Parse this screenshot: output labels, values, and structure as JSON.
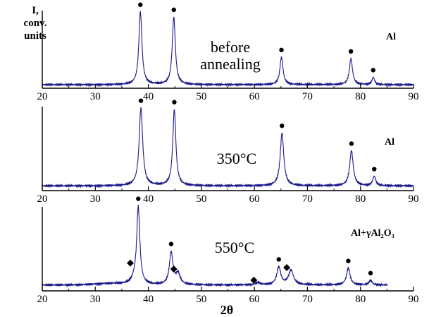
{
  "y_axis_label": [
    "I,",
    "conv.",
    "units"
  ],
  "x_axis_label": "2θ",
  "chart_data": [
    {
      "type": "line",
      "label": "before annealing",
      "phase": "Al",
      "xlim": [
        20,
        90
      ],
      "xticks": [
        20,
        30,
        40,
        50,
        60,
        70,
        80,
        90
      ],
      "baseline": 1.0,
      "peaks": [
        {
          "x": 38.5,
          "height": 100,
          "width": 0.35,
          "marker": "circle"
        },
        {
          "x": 44.8,
          "height": 93,
          "width": 0.35,
          "marker": "circle"
        },
        {
          "x": 65.1,
          "height": 38,
          "width": 0.35,
          "marker": "circle"
        },
        {
          "x": 78.2,
          "height": 36,
          "width": 0.35,
          "marker": "circle"
        },
        {
          "x": 82.4,
          "height": 10,
          "width": 0.3,
          "marker": "circle"
        }
      ]
    },
    {
      "type": "line",
      "label": "350°C",
      "phase": "Al",
      "xlim": [
        20,
        90
      ],
      "xticks": [
        20,
        30,
        40,
        50,
        60,
        70,
        80,
        90
      ],
      "baseline": 2.5,
      "peaks": [
        {
          "x": 38.6,
          "height": 100,
          "width": 0.4,
          "marker": "circle"
        },
        {
          "x": 44.9,
          "height": 98,
          "width": 0.35,
          "marker": "circle"
        },
        {
          "x": 65.2,
          "height": 68,
          "width": 0.4,
          "marker": "circle"
        },
        {
          "x": 78.3,
          "height": 45,
          "width": 0.4,
          "marker": "circle"
        },
        {
          "x": 82.6,
          "height": 12,
          "width": 0.35,
          "marker": "circle"
        }
      ]
    },
    {
      "type": "line",
      "label": "550°C",
      "phase": "Al+γAl₂O₃",
      "xlim": [
        20,
        90
      ],
      "xticks": [
        20,
        30,
        40,
        50,
        60,
        70,
        80,
        90
      ],
      "x_data_end": 85,
      "baseline": 4,
      "peaks": [
        {
          "x": 37.4,
          "height": 5,
          "width": 0.7,
          "marker": "diamond"
        },
        {
          "x": 38.1,
          "height": 100,
          "width": 0.35,
          "marker": "circle"
        },
        {
          "x": 44.3,
          "height": 42,
          "width": 0.4,
          "marker": "circle"
        },
        {
          "x": 45.6,
          "height": 14,
          "width": 0.5,
          "marker": "diamond"
        },
        {
          "x": 60.7,
          "height": 3,
          "width": 0.5,
          "marker": "diamond"
        },
        {
          "x": 64.6,
          "height": 23,
          "width": 0.45,
          "marker": "circle"
        },
        {
          "x": 66.9,
          "height": 19,
          "width": 0.55,
          "marker": "diamond"
        },
        {
          "x": 77.7,
          "height": 22,
          "width": 0.4,
          "marker": "circle"
        },
        {
          "x": 81.9,
          "height": 6,
          "width": 0.35,
          "marker": "circle"
        }
      ]
    }
  ]
}
